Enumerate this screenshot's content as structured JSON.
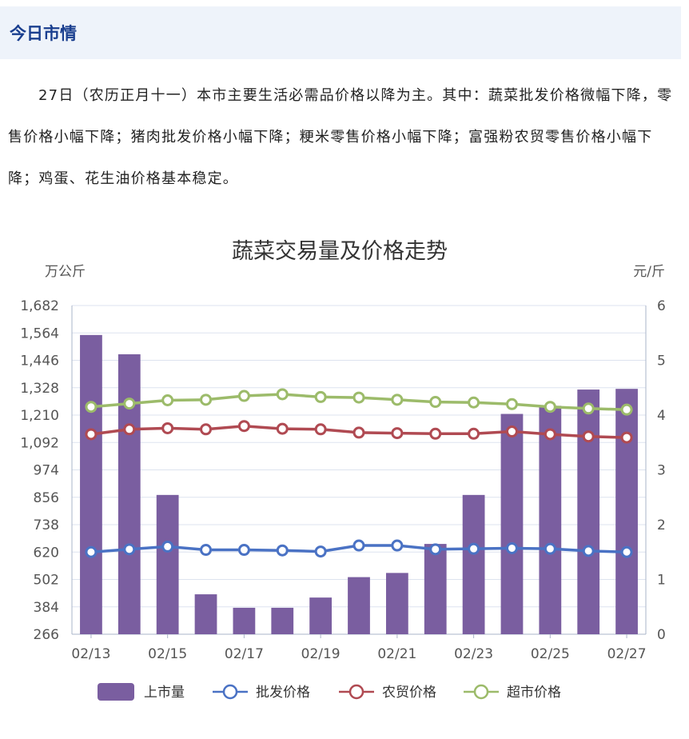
{
  "header": {
    "title": "今日市情"
  },
  "summary": {
    "day": "27",
    "text": "日（农历正月十一）本市主要生活必需品价格以降为主。其中：蔬菜批发价格微幅下降，零售价格小幅下降；猪肉批发价格小幅下降；粳米零售价格小幅下降；富强粉农贸零售价格小幅下降；鸡蛋、花生油价格基本稳定。"
  },
  "colors": {
    "bar": "#7a5ea0",
    "wholesale": "#4a72c4",
    "market": "#b04a52",
    "supermarket": "#9cbb6a",
    "grid": "#dde3ef"
  },
  "chart_data": {
    "type": "bar",
    "title": "蔬菜交易量及价格走势",
    "ylabel_left": "万公斤",
    "ylabel_right": "元/斤",
    "ylim_left": [
      266,
      1682
    ],
    "ylim_right": [
      0,
      6
    ],
    "yticks_left": [
      "1,682",
      "1,564",
      "1,446",
      "1,328",
      "1,210",
      "1,092",
      "974",
      "856",
      "738",
      "620",
      "502",
      "384",
      "266"
    ],
    "yticks_right": [
      "6",
      "5",
      "4",
      "3",
      "2",
      "1",
      "0"
    ],
    "categories": [
      "02/13",
      "02/14",
      "02/15",
      "02/16",
      "02/17",
      "02/18",
      "02/19",
      "02/20",
      "02/21",
      "02/22",
      "02/23",
      "02/24",
      "02/25",
      "02/26",
      "02/27"
    ],
    "xtick_labels": [
      "02/13",
      "02/15",
      "02/17",
      "02/19",
      "02/21",
      "02/23",
      "02/25",
      "02/27"
    ],
    "legend_position": "bottom",
    "series": [
      {
        "name": "上市量",
        "kind": "bar",
        "axis": "left",
        "values": [
          1555,
          1472,
          866,
          438,
          380,
          380,
          424,
          512,
          530,
          655,
          866,
          1215,
          1250,
          1320,
          1323
        ]
      },
      {
        "name": "批发价格",
        "kind": "line",
        "axis": "right",
        "values": [
          1.5,
          1.55,
          1.6,
          1.54,
          1.54,
          1.53,
          1.51,
          1.62,
          1.62,
          1.55,
          1.56,
          1.57,
          1.56,
          1.52,
          1.5
        ]
      },
      {
        "name": "农贸价格",
        "kind": "line",
        "axis": "right",
        "values": [
          3.65,
          3.74,
          3.76,
          3.74,
          3.8,
          3.75,
          3.74,
          3.68,
          3.67,
          3.66,
          3.66,
          3.7,
          3.65,
          3.61,
          3.59
        ]
      },
      {
        "name": "超市价格",
        "kind": "line",
        "axis": "right",
        "values": [
          4.15,
          4.21,
          4.27,
          4.28,
          4.35,
          4.38,
          4.33,
          4.32,
          4.28,
          4.24,
          4.23,
          4.2,
          4.15,
          4.12,
          4.1
        ]
      }
    ]
  }
}
